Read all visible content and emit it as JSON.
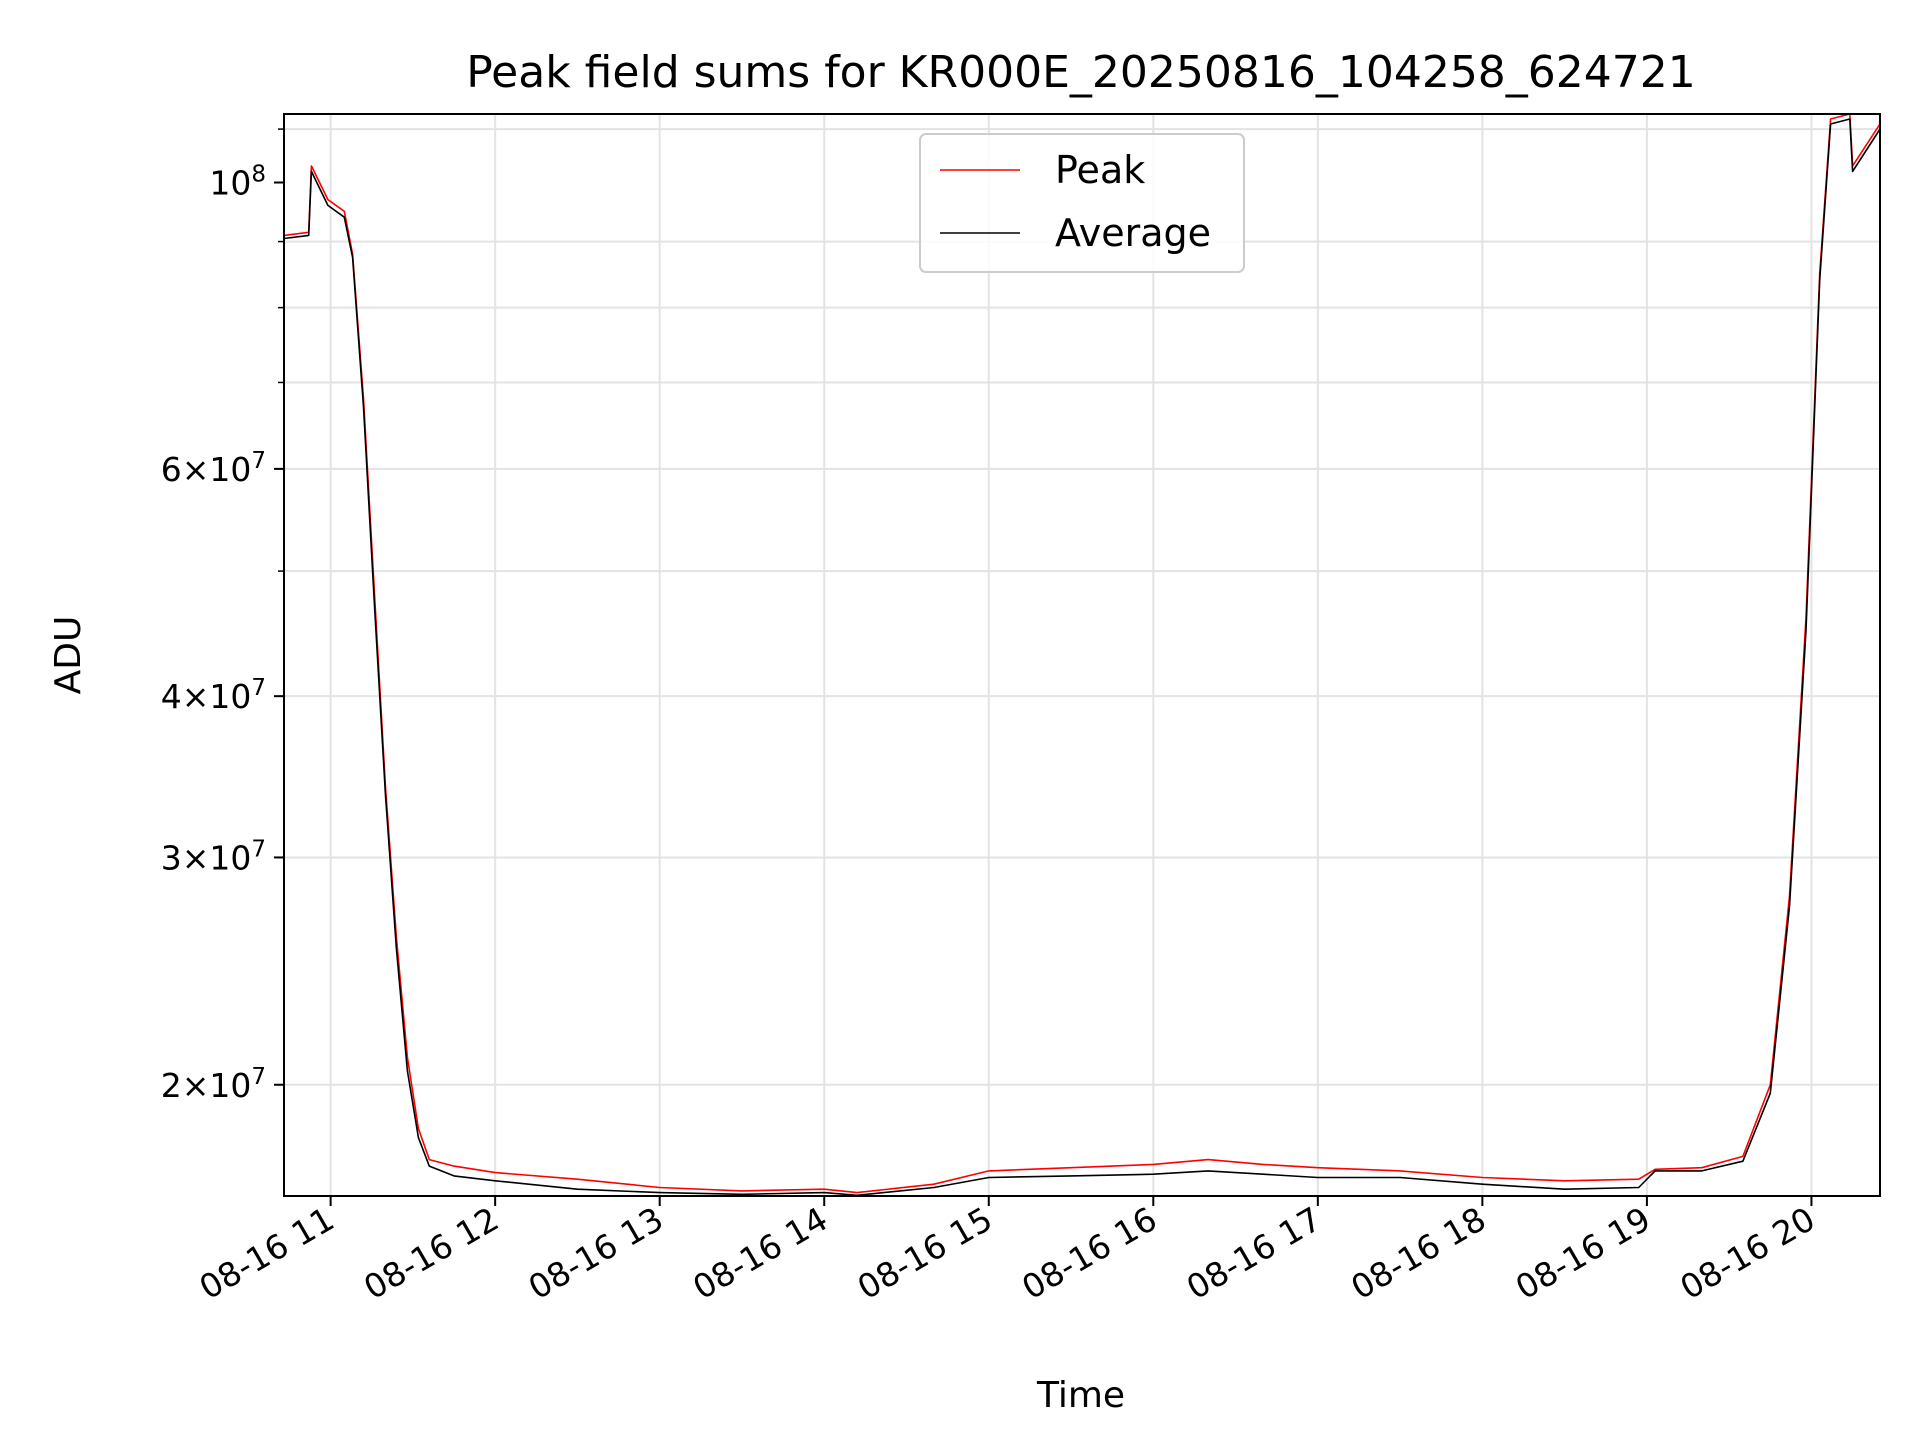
{
  "chart_data": {
    "type": "line",
    "title": "Peak field sums for KR000E_20250816_104258_624721",
    "xlabel": "Time",
    "ylabel": "ADU",
    "y_scale": "log",
    "grid": true,
    "legend_placement": "upper-center",
    "x_range": [
      "2025-08-16 10:43",
      "2025-08-16 20:25"
    ],
    "ylim": [
      16400000,
      113000000
    ],
    "x_ticks": [
      {
        "t": "2025-08-16 11:00",
        "label": "08-16 11"
      },
      {
        "t": "2025-08-16 12:00",
        "label": "08-16 12"
      },
      {
        "t": "2025-08-16 13:00",
        "label": "08-16 13"
      },
      {
        "t": "2025-08-16 14:00",
        "label": "08-16 14"
      },
      {
        "t": "2025-08-16 15:00",
        "label": "08-16 15"
      },
      {
        "t": "2025-08-16 16:00",
        "label": "08-16 16"
      },
      {
        "t": "2025-08-16 17:00",
        "label": "08-16 17"
      },
      {
        "t": "2025-08-16 18:00",
        "label": "08-16 18"
      },
      {
        "t": "2025-08-16 19:00",
        "label": "08-16 19"
      },
      {
        "t": "2025-08-16 20:00",
        "label": "08-16 20"
      }
    ],
    "y_ticks": [
      {
        "value": 20000000,
        "base": "2",
        "exp": "7"
      },
      {
        "value": 30000000,
        "base": "3",
        "exp": "7"
      },
      {
        "value": 40000000,
        "base": "4",
        "exp": "7"
      },
      {
        "value": 60000000,
        "base": "6",
        "exp": "7"
      },
      {
        "value": 100000000,
        "base": "",
        "exp": "8"
      }
    ],
    "series": [
      {
        "name": "Peak",
        "color": "#ff0000",
        "x": [
          "2025-08-16 10:43",
          "2025-08-16 10:52",
          "2025-08-16 10:53",
          "2025-08-16 10:59",
          "2025-08-16 11:05",
          "2025-08-16 11:08",
          "2025-08-16 11:12",
          "2025-08-16 11:16",
          "2025-08-16 11:20",
          "2025-08-16 11:24",
          "2025-08-16 11:28",
          "2025-08-16 11:32",
          "2025-08-16 11:36",
          "2025-08-16 11:45",
          "2025-08-16 12:00",
          "2025-08-16 12:30",
          "2025-08-16 13:00",
          "2025-08-16 13:30",
          "2025-08-16 14:00",
          "2025-08-16 14:12",
          "2025-08-16 14:40",
          "2025-08-16 15:00",
          "2025-08-16 15:30",
          "2025-08-16 16:00",
          "2025-08-16 16:20",
          "2025-08-16 16:40",
          "2025-08-16 17:00",
          "2025-08-16 17:30",
          "2025-08-16 18:00",
          "2025-08-16 18:30",
          "2025-08-16 18:57",
          "2025-08-16 19:03",
          "2025-08-16 19:20",
          "2025-08-16 19:35",
          "2025-08-16 19:45",
          "2025-08-16 19:52",
          "2025-08-16 19:58",
          "2025-08-16 20:03",
          "2025-08-16 20:07",
          "2025-08-16 20:14",
          "2025-08-16 20:15",
          "2025-08-16 20:25"
        ],
        "values": [
          91000000,
          91500000,
          103000000,
          97000000,
          95000000,
          88000000,
          68000000,
          48000000,
          34000000,
          26000000,
          21000000,
          18500000,
          17500000,
          17300000,
          17100000,
          16900000,
          16650000,
          16550000,
          16600000,
          16500000,
          16750000,
          17150000,
          17250000,
          17350000,
          17500000,
          17350000,
          17250000,
          17150000,
          16950000,
          16850000,
          16900000,
          17200000,
          17250000,
          17600000,
          20000000,
          28000000,
          46000000,
          85000000,
          112000000,
          113000000,
          103000000,
          111000000
        ]
      },
      {
        "name": "Average",
        "color": "#000000",
        "x": [
          "2025-08-16 10:43",
          "2025-08-16 10:52",
          "2025-08-16 10:53",
          "2025-08-16 10:59",
          "2025-08-16 11:05",
          "2025-08-16 11:08",
          "2025-08-16 11:12",
          "2025-08-16 11:16",
          "2025-08-16 11:20",
          "2025-08-16 11:24",
          "2025-08-16 11:28",
          "2025-08-16 11:32",
          "2025-08-16 11:36",
          "2025-08-16 11:45",
          "2025-08-16 12:00",
          "2025-08-16 12:30",
          "2025-08-16 13:00",
          "2025-08-16 13:30",
          "2025-08-16 14:00",
          "2025-08-16 14:12",
          "2025-08-16 14:40",
          "2025-08-16 15:00",
          "2025-08-16 15:30",
          "2025-08-16 16:00",
          "2025-08-16 16:20",
          "2025-08-16 16:40",
          "2025-08-16 17:00",
          "2025-08-16 17:30",
          "2025-08-16 18:00",
          "2025-08-16 18:30",
          "2025-08-16 18:57",
          "2025-08-16 19:03",
          "2025-08-16 19:20",
          "2025-08-16 19:35",
          "2025-08-16 19:45",
          "2025-08-16 19:52",
          "2025-08-16 19:58",
          "2025-08-16 20:03",
          "2025-08-16 20:07",
          "2025-08-16 20:14",
          "2025-08-16 20:15",
          "2025-08-16 20:25"
        ],
        "values": [
          90500000,
          91000000,
          102000000,
          96000000,
          94000000,
          87500000,
          67000000,
          47000000,
          33500000,
          25500000,
          20500000,
          18200000,
          17300000,
          17000000,
          16850000,
          16600000,
          16500000,
          16450000,
          16500000,
          16420000,
          16650000,
          16950000,
          17000000,
          17050000,
          17150000,
          17050000,
          16950000,
          16950000,
          16750000,
          16600000,
          16650000,
          17150000,
          17150000,
          17450000,
          19700000,
          27500000,
          45000000,
          84000000,
          111000000,
          112000000,
          102000000,
          110000000
        ]
      }
    ]
  }
}
